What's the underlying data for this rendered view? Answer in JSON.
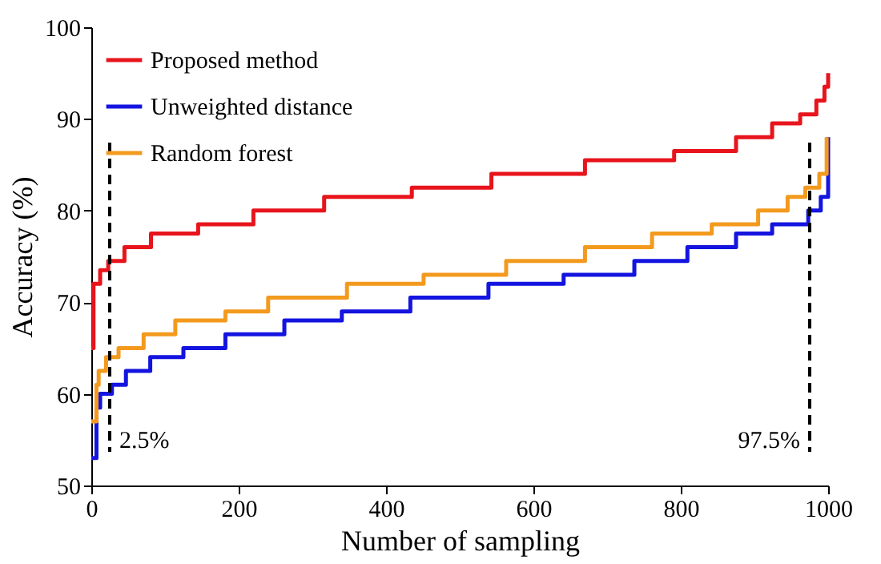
{
  "chart_data": {
    "type": "step",
    "xlabel": "Number of sampling",
    "ylabel": "Accuracy (%)",
    "xlim": [
      0,
      1000
    ],
    "ylim": [
      50,
      100
    ],
    "xticks": [
      0,
      200,
      400,
      600,
      800,
      1000
    ],
    "yticks": [
      50,
      60,
      70,
      80,
      90,
      100
    ],
    "grid": false,
    "legend": "top left",
    "marker": "none",
    "line_style": "solid",
    "series": [
      {
        "name": "Proposed method",
        "color": "#e8141c",
        "x": [
          0,
          3,
          12,
          23,
          45,
          81,
          145,
          220,
          316,
          435,
          543,
          670,
          791,
          875,
          924,
          962,
          984,
          995,
          1000
        ],
        "values": [
          65,
          72,
          73.5,
          74.5,
          76,
          77.5,
          78.5,
          80,
          81.5,
          82.5,
          84,
          85.5,
          86.5,
          88,
          89.5,
          90.5,
          92,
          93.5,
          95
        ]
      },
      {
        "name": "Unweighted distance",
        "color": "#1414e0",
        "x": [
          0,
          7,
          12,
          28,
          47,
          80,
          125,
          182,
          262,
          340,
          433,
          539,
          641,
          737,
          809,
          875,
          924,
          973,
          990,
          1000
        ],
        "values": [
          53,
          58.5,
          60,
          61,
          62.5,
          64,
          65,
          66.5,
          68,
          69,
          70.5,
          72,
          73,
          74.5,
          76,
          77.5,
          78.5,
          80,
          81.5,
          88
        ]
      },
      {
        "name": "Random forest",
        "color": "#f39a1e",
        "x": [
          0,
          7,
          10,
          20,
          37,
          71,
          114,
          182,
          240,
          347,
          451,
          563,
          670,
          761,
          842,
          905,
          945,
          969,
          988,
          998
        ],
        "values": [
          57,
          61,
          62.5,
          64,
          65,
          66.5,
          68,
          69,
          70.5,
          72,
          73,
          74.5,
          76,
          77.5,
          78.5,
          80,
          81.5,
          82.5,
          84,
          88
        ]
      }
    ],
    "ref_lines": [
      {
        "axis": "x",
        "value": 25,
        "color": "#000000",
        "line_style": "dashed"
      },
      {
        "axis": "x",
        "value": 975,
        "color": "#000000",
        "line_style": "dashed"
      }
    ],
    "annotations": [
      {
        "text": "2.5%",
        "x": 25,
        "y": 55
      },
      {
        "text": "97.5%",
        "x": 975,
        "y": 55
      }
    ]
  }
}
